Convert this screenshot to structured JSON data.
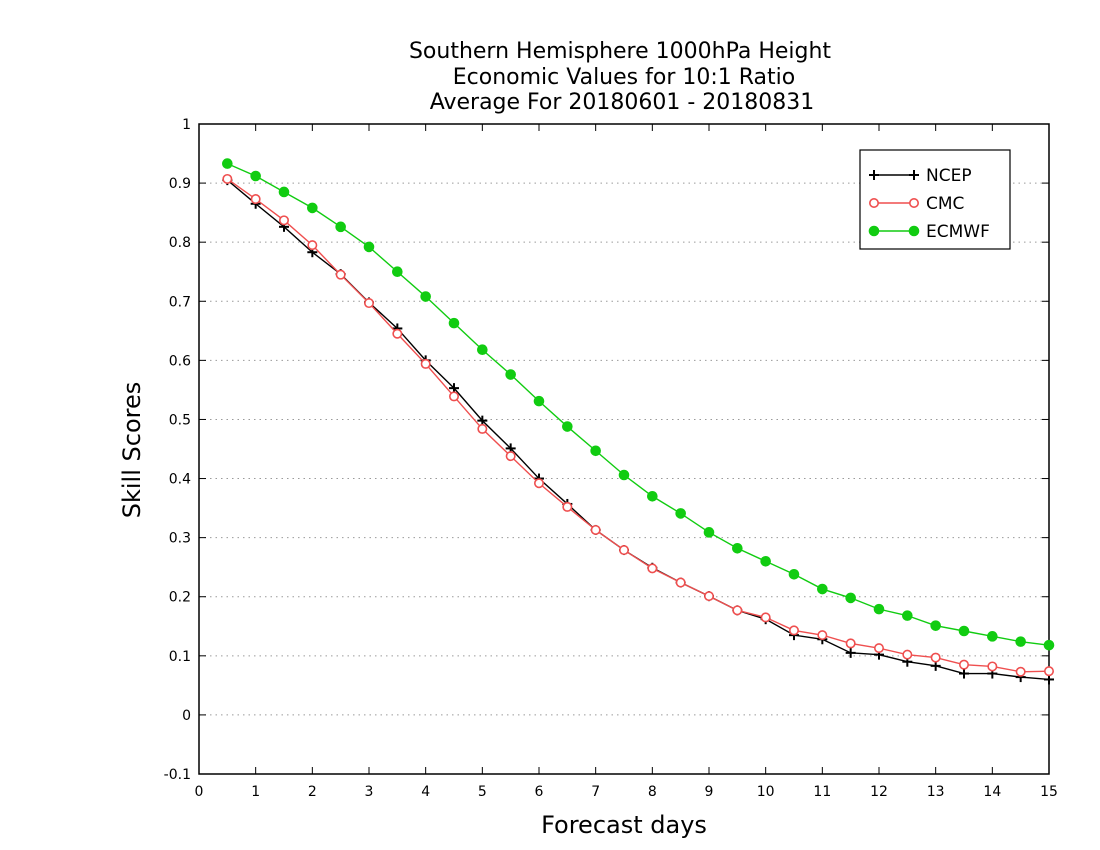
{
  "chart_data": {
    "type": "line",
    "title_lines": [
      "Southern Hemisphere 1000hPa Height",
      "Economic Values for 10:1 Ratio",
      "Average For 20180601 - 20180831"
    ],
    "xlabel": "Forecast days",
    "ylabel": "Skill Scores",
    "xlim": [
      0,
      15
    ],
    "ylim": [
      -0.1,
      1
    ],
    "xticks": [
      "0",
      "1",
      "2",
      "3",
      "4",
      "5",
      "6",
      "7",
      "8",
      "9",
      "10",
      "11",
      "12",
      "13",
      "14",
      "15"
    ],
    "yticks": [
      "-0.1",
      "0",
      "0.1",
      "0.2",
      "0.3",
      "0.4",
      "0.5",
      "0.6",
      "0.7",
      "0.8",
      "0.9",
      "1"
    ],
    "grid": "horizontal dotted",
    "legend_position": "top-right",
    "x": [
      0.5,
      1,
      1.5,
      2,
      2.5,
      3,
      3.5,
      4,
      4.5,
      5,
      5.5,
      6,
      6.5,
      7,
      7.5,
      8,
      8.5,
      9,
      9.5,
      10,
      10.5,
      11,
      11.5,
      12,
      12.5,
      13,
      13.5,
      14,
      14.5,
      15
    ],
    "series": [
      {
        "name": "NCEP",
        "color": "#000000",
        "marker": "plus",
        "values": [
          0.905,
          0.865,
          0.826,
          0.783,
          0.746,
          0.698,
          0.654,
          0.6,
          0.553,
          0.498,
          0.451,
          0.4,
          0.357,
          0.313,
          0.279,
          0.249,
          0.224,
          0.201,
          0.177,
          0.162,
          0.135,
          0.128,
          0.105,
          0.102,
          0.09,
          0.083,
          0.07,
          0.07,
          0.064,
          0.06
        ]
      },
      {
        "name": "CMC",
        "color": "#ef4f4f",
        "marker": "open-circle",
        "values": [
          0.907,
          0.873,
          0.837,
          0.795,
          0.745,
          0.697,
          0.645,
          0.594,
          0.539,
          0.484,
          0.438,
          0.392,
          0.352,
          0.313,
          0.279,
          0.248,
          0.224,
          0.201,
          0.177,
          0.165,
          0.143,
          0.135,
          0.121,
          0.113,
          0.102,
          0.097,
          0.085,
          0.082,
          0.073,
          0.074
        ]
      },
      {
        "name": "ECMWF",
        "color": "#11cc11",
        "marker": "filled-circle",
        "values": [
          0.933,
          0.912,
          0.885,
          0.858,
          0.826,
          0.792,
          0.75,
          0.708,
          0.663,
          0.618,
          0.576,
          0.531,
          0.488,
          0.447,
          0.406,
          0.37,
          0.341,
          0.309,
          0.282,
          0.26,
          0.238,
          0.213,
          0.198,
          0.179,
          0.168,
          0.151,
          0.142,
          0.133,
          0.124,
          0.118
        ]
      }
    ]
  }
}
